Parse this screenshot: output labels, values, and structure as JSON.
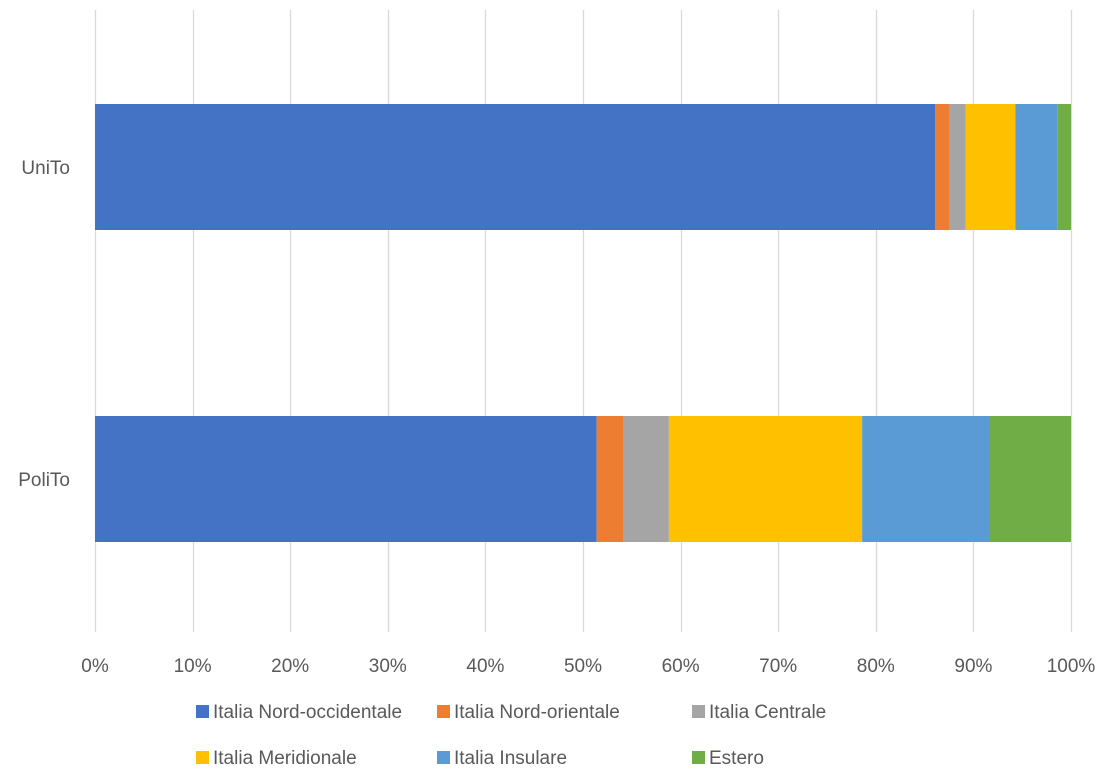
{
  "chart_data": {
    "type": "bar",
    "orientation": "horizontal",
    "stacked": "percent",
    "categories": [
      "UniTo",
      "PoliTo"
    ],
    "series": [
      {
        "name": "Italia Nord-occidentale",
        "color": "#4472C4",
        "values": [
          86.1,
          51.4
        ]
      },
      {
        "name": "Italia Nord-orientale",
        "color": "#ED7D31",
        "values": [
          1.4,
          2.7
        ]
      },
      {
        "name": "Italia Centrale",
        "color": "#A5A5A5",
        "values": [
          1.7,
          4.7
        ]
      },
      {
        "name": "Italia Meridionale",
        "color": "#FFC000",
        "values": [
          5.1,
          19.8
        ]
      },
      {
        "name": "Italia Insulare",
        "color": "#5B9BD5",
        "values": [
          4.3,
          13.1
        ]
      },
      {
        "name": "Estero",
        "color": "#70AD47",
        "values": [
          1.4,
          8.3
        ]
      }
    ],
    "x_ticks": [
      "0%",
      "10%",
      "20%",
      "30%",
      "40%",
      "50%",
      "60%",
      "70%",
      "80%",
      "90%",
      "100%"
    ],
    "xlim": [
      0,
      100
    ],
    "grid": "vertical",
    "legend_position": "bottom",
    "title": "",
    "xlabel": "",
    "ylabel": ""
  }
}
